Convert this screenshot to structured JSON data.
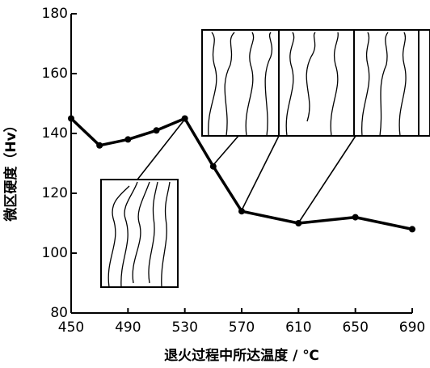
{
  "chart_data": {
    "type": "line",
    "x_label": "退火过程中所达温度 / ℃",
    "y_label": "微区硬度（Hv）",
    "x": [
      450,
      470,
      490,
      510,
      530,
      550,
      570,
      610,
      650,
      690
    ],
    "series": [
      {
        "color": "#000000",
        "values": [
          145,
          136,
          138,
          141,
          145,
          129,
          114,
          110,
          112,
          108
        ]
      }
    ],
    "xlim": [
      450,
      690
    ],
    "xticks": [
      450,
      490,
      530,
      570,
      610,
      650,
      690
    ],
    "ylim": [
      80,
      180
    ],
    "yticks": [
      80,
      100,
      120,
      140,
      160,
      180
    ]
  }
}
